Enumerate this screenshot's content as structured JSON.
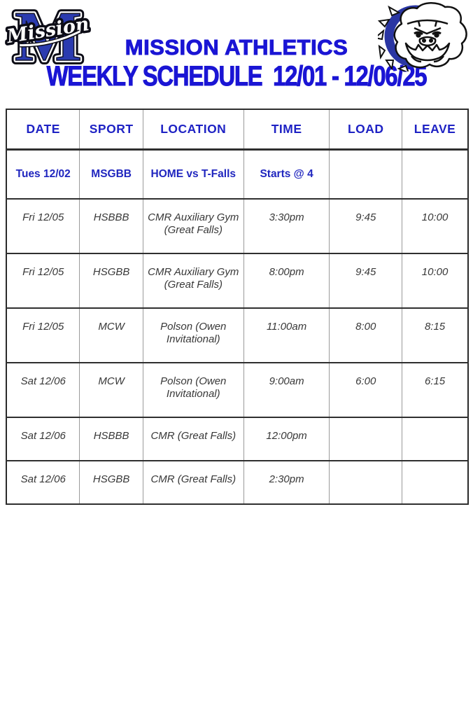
{
  "branding": {
    "school_letter": "M",
    "script_name": "Mission",
    "title": "MISSION ATHLETICS",
    "subtitle": "WEEKLY SCHEDULE  12/01 - 12/06/25",
    "title_color": "#1a15d4",
    "logo_blue": "#2b3bb0",
    "collar_blue": "#2a36a3"
  },
  "icons": {
    "m_logo": "mission-varsity-m-logo",
    "bulldog": "bulldog-mascot-logo"
  },
  "table": {
    "headers": [
      "DATE",
      "SPORT",
      "LOCATION",
      "TIME",
      "LOAD",
      "LEAVE"
    ],
    "columns": [
      "date",
      "sport",
      "location",
      "time",
      "load",
      "leave"
    ],
    "rows": [
      {
        "date": "Tues 12/02",
        "sport": "MSGBB",
        "location": "HOME vs T-Falls",
        "time": "Starts @ 4",
        "load": "",
        "leave": "",
        "highlight": true
      },
      {
        "date": "Fri 12/05",
        "sport": "HSBBB",
        "location": "CMR Auxiliary Gym (Great Falls)",
        "time": "3:30pm",
        "load": "9:45",
        "leave": "10:00"
      },
      {
        "date": "Fri 12/05",
        "sport": "HSGBB",
        "location": "CMR Auxiliary Gym (Great Falls)",
        "time": "8:00pm",
        "load": "9:45",
        "leave": "10:00"
      },
      {
        "date": "Fri 12/05",
        "sport": "MCW",
        "location": "Polson (Owen Invitational)",
        "time": "11:00am",
        "load": "8:00",
        "leave": "8:15"
      },
      {
        "date": "Sat 12/06",
        "sport": "MCW",
        "location": "Polson (Owen Invitational)",
        "time": "9:00am",
        "load": "6:00",
        "leave": "6:15"
      },
      {
        "date": "Sat 12/06",
        "sport": "HSBBB",
        "location": "CMR (Great Falls)",
        "time": "12:00pm",
        "load": "",
        "leave": ""
      },
      {
        "date": "Sat 12/06",
        "sport": "HSGBB",
        "location": "CMR (Great Falls)",
        "time": "2:30pm",
        "load": "",
        "leave": ""
      }
    ]
  }
}
